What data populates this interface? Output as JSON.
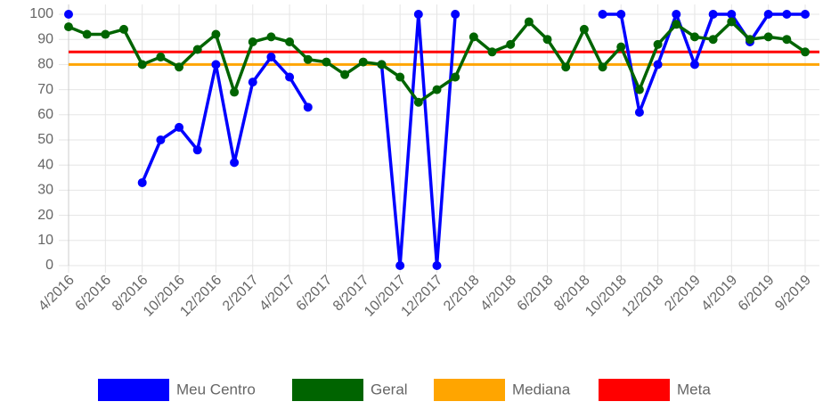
{
  "chart_data": {
    "type": "line",
    "categories": [
      "4/2016",
      null,
      "6/2016",
      null,
      "8/2016",
      null,
      "10/2016",
      null,
      "12/2016",
      null,
      "2/2017",
      null,
      "4/2017",
      null,
      "6/2017",
      null,
      "8/2017",
      null,
      "10/2017",
      null,
      "12/2017",
      null,
      "2/2018",
      null,
      "4/2018",
      null,
      "6/2018",
      null,
      "8/2018",
      null,
      "10/2018",
      null,
      "12/2018",
      null,
      "2/2019",
      null,
      "4/2019",
      null,
      "6/2019",
      null,
      "9/2019"
    ],
    "series": [
      {
        "name": "Meu Centro",
        "color": "#0000ff",
        "values": [
          100,
          null,
          null,
          null,
          33,
          50,
          55,
          46,
          80,
          41,
          73,
          83,
          75,
          63,
          null,
          null,
          null,
          80,
          0,
          100,
          0,
          100,
          null,
          null,
          null,
          null,
          null,
          null,
          null,
          100,
          100,
          61,
          80,
          100,
          80,
          100,
          100,
          89,
          100,
          100,
          100
        ]
      },
      {
        "name": "Geral",
        "color": "#006400",
        "values": [
          95,
          92,
          92,
          94,
          80,
          83,
          79,
          86,
          92,
          69,
          89,
          91,
          89,
          82,
          81,
          76,
          81,
          80,
          75,
          65,
          70,
          75,
          91,
          85,
          88,
          97,
          90,
          79,
          94,
          79,
          87,
          70,
          88,
          96,
          91,
          90,
          97,
          90,
          91,
          90,
          85
        ]
      }
    ],
    "reference_lines": [
      {
        "name": "Mediana",
        "color": "#ffa500",
        "value": 80
      },
      {
        "name": "Meta",
        "color": "#ff0000",
        "value": 85
      }
    ],
    "ylim": [
      0,
      100
    ],
    "yticks": [
      0,
      10,
      20,
      30,
      40,
      50,
      60,
      70,
      80,
      90,
      100
    ],
    "grid": true
  }
}
